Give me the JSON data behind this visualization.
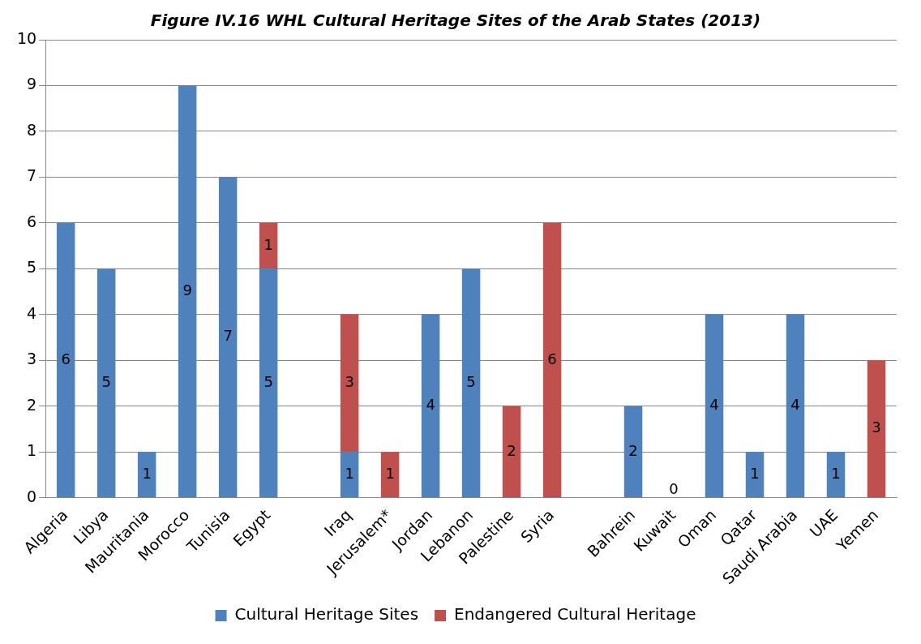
{
  "chart_data": {
    "type": "bar",
    "title": "Figure IV.16 WHL Cultural Heritage Sites of the Arab States (2013)",
    "stacked": true,
    "categories": [
      "Algeria",
      "Libya",
      "Mauritania",
      "Morocco",
      "Tunisia",
      "Egypt",
      null,
      "Iraq",
      "Jerusalem*",
      "Jordan",
      "Lebanon",
      "Palestine",
      "Syria",
      null,
      "Bahrein",
      "Kuwait",
      "Oman",
      "Qatar",
      "Saudi Arabia",
      "UAE",
      "Yemen"
    ],
    "series": [
      {
        "name": "Cultural Heritage Sites",
        "color": "#4f81bd",
        "values": [
          6,
          5,
          1,
          9,
          7,
          5,
          null,
          1,
          null,
          4,
          5,
          null,
          null,
          null,
          2,
          0,
          4,
          1,
          4,
          1,
          null
        ],
        "value_labels": [
          "6",
          "5",
          "1",
          "9",
          "7",
          "5",
          null,
          "1",
          null,
          "4",
          "5",
          null,
          null,
          null,
          "2",
          "0",
          "4",
          "1",
          "4",
          "1",
          null
        ]
      },
      {
        "name": "Endangered Cultural Heritage",
        "color": "#c0504d",
        "values": [
          null,
          null,
          null,
          null,
          null,
          1,
          null,
          3,
          1,
          null,
          null,
          2,
          6,
          null,
          null,
          null,
          null,
          null,
          null,
          null,
          3
        ],
        "value_labels": [
          null,
          null,
          null,
          null,
          null,
          "1",
          null,
          "3",
          "1",
          null,
          null,
          "2",
          "6",
          null,
          null,
          null,
          null,
          null,
          null,
          null,
          "3"
        ]
      }
    ],
    "ylim": [
      0,
      10
    ],
    "yticks": [
      0,
      1,
      2,
      3,
      4,
      5,
      6,
      7,
      8,
      9,
      10
    ],
    "grid": "y",
    "legend": "bottom"
  }
}
